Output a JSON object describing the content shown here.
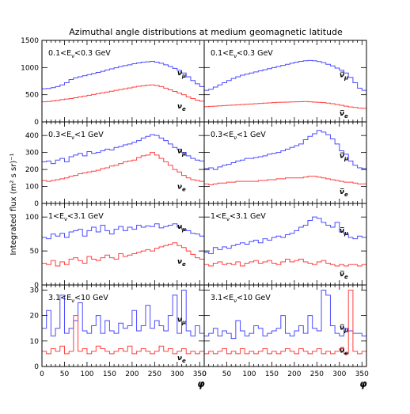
{
  "chart_data": {
    "type": "line",
    "title": "Azimuthal angle distributions at medium geomagnetic latitude",
    "ylabel": "Integrated flux (m² s sr)⁻¹",
    "xlabel": "φ",
    "xlim": [
      0,
      360
    ],
    "x_ticks": [
      0,
      50,
      100,
      150,
      200,
      250,
      300,
      350
    ],
    "bin_width": 10,
    "colors": {
      "nu_mu": "#4b4bff",
      "nu_e": "#ff4040"
    },
    "rows": [
      {
        "ylim": [
          0,
          1500
        ],
        "y_ticks": [
          0,
          500,
          1000,
          1500
        ],
        "panels": [
          {
            "label": "0.1<Eν<0.3 GeV",
            "series": [
              {
                "name": "νμ",
                "color_key": "nu_mu",
                "values": [
                  610,
                  615,
                  630,
                  650,
                  680,
                  720,
                  780,
                  810,
                  830,
                  850,
                  870,
                  890,
                  910,
                  930,
                  955,
                  975,
                  995,
                  1020,
                  1035,
                  1050,
                  1070,
                  1085,
                  1100,
                  1105,
                  1115,
                  1100,
                  1080,
                  1050,
                  1020,
                  985,
                  950,
                  900,
                  830,
                  760,
                  700,
                  650
                ]
              },
              {
                "name": "νe",
                "color_key": "nu_e",
                "values": [
                  370,
                  375,
                  385,
                  395,
                  410,
                  420,
                  430,
                  445,
                  460,
                  475,
                  490,
                  505,
                  520,
                  535,
                  550,
                  565,
                  580,
                  595,
                  610,
                  625,
                  640,
                  655,
                  665,
                  675,
                  680,
                  670,
                  650,
                  620,
                  590,
                  560,
                  530,
                  500,
                  460,
                  430,
                  400,
                  380
                ]
              }
            ]
          },
          {
            "label": "0.1<Eν<0.3 GeV",
            "series": [
              {
                "name": "ν̅μ",
                "color_key": "nu_mu",
                "values": [
                  580,
                  600,
                  640,
                  680,
                  720,
                  760,
                  800,
                  830,
                  860,
                  880,
                  900,
                  920,
                  940,
                  960,
                  980,
                  1000,
                  1020,
                  1040,
                  1060,
                  1080,
                  1100,
                  1115,
                  1125,
                  1130,
                  1125,
                  1110,
                  1090,
                  1060,
                  1030,
                  990,
                  950,
                  900,
                  820,
                  720,
                  620,
                  580
                ]
              },
              {
                "name": "ν̅e",
                "color_key": "nu_e",
                "values": [
                  280,
                  285,
                  290,
                  295,
                  300,
                  305,
                  310,
                  315,
                  320,
                  325,
                  330,
                  335,
                  340,
                  345,
                  350,
                  355,
                  360,
                  362,
                  365,
                  368,
                  370,
                  372,
                  375,
                  370,
                  365,
                  360,
                  355,
                  345,
                  335,
                  320,
                  305,
                  290,
                  275,
                  265,
                  255,
                  250
                ]
              }
            ]
          }
        ]
      },
      {
        "ylim": [
          0,
          480
        ],
        "y_ticks": [
          0,
          100,
          200,
          300,
          400
        ],
        "panels": [
          {
            "label": "0.3<Eν<1 GeV",
            "series": [
              {
                "name": "νμ",
                "color_key": "nu_mu",
                "values": [
                  245,
                  250,
                  235,
                  255,
                  265,
                  245,
                  275,
                  285,
                  295,
                  280,
                  305,
                  295,
                  300,
                  310,
                  320,
                  315,
                  330,
                  335,
                  345,
                  350,
                  360,
                  370,
                  385,
                  395,
                  405,
                  400,
                  385,
                  370,
                  350,
                  330,
                  320,
                  300,
                  280,
                  265,
                  255,
                  250
                ]
              },
              {
                "name": "νe",
                "color_key": "nu_e",
                "values": [
                  135,
                  130,
                  135,
                  140,
                  145,
                  150,
                  160,
                  165,
                  175,
                  180,
                  185,
                  190,
                  195,
                  205,
                  210,
                  220,
                  225,
                  235,
                  245,
                  250,
                  255,
                  270,
                  280,
                  285,
                  300,
                  285,
                  265,
                  245,
                  225,
                  200,
                  185,
                  165,
                  150,
                  140,
                  135,
                  130
                ]
              }
            ]
          },
          {
            "label": "0.3<Eν<1 GeV",
            "series": [
              {
                "name": "ν̅μ",
                "color_key": "nu_mu",
                "values": [
                  205,
                  210,
                  200,
                  215,
                  225,
                  230,
                  240,
                  250,
                  255,
                  265,
                  265,
                  270,
                  275,
                  280,
                  290,
                  295,
                  300,
                  310,
                  320,
                  330,
                  340,
                  350,
                  375,
                  395,
                  410,
                  430,
                  420,
                  405,
                  380,
                  350,
                  310,
                  290,
                  250,
                  225,
                  210,
                  205
                ]
              },
              {
                "name": "ν̅e",
                "color_key": "nu_e",
                "values": [
                  115,
                  110,
                  115,
                  120,
                  120,
                  125,
                  125,
                  130,
                  130,
                  130,
                  130,
                  130,
                  135,
                  135,
                  140,
                  140,
                  145,
                  145,
                  150,
                  150,
                  150,
                  150,
                  155,
                  160,
                  160,
                  155,
                  150,
                  145,
                  140,
                  135,
                  130,
                  125,
                  125,
                  120,
                  115,
                  115
                ]
              }
            ]
          }
        ]
      },
      {
        "ylim": [
          0,
          120
        ],
        "y_ticks": [
          0,
          50,
          100
        ],
        "panels": [
          {
            "label": "1<Eν<3.1 GeV",
            "series": [
              {
                "name": "νμ",
                "color_key": "nu_mu",
                "values": [
                  70,
                  68,
                  75,
                  72,
                  76,
                  70,
                  78,
                  80,
                  82,
                  72,
                  80,
                  85,
                  78,
                  88,
                  80,
                  75,
                  82,
                  86,
                  80,
                  85,
                  82,
                  88,
                  85,
                  87,
                  86,
                  90,
                  84,
                  86,
                  88,
                  90,
                  85,
                  82,
                  80,
                  76,
                  75,
                  72
                ]
              },
              {
                "name": "νe",
                "color_key": "nu_e",
                "values": [
                  32,
                  30,
                  36,
                  28,
                  34,
                  30,
                  38,
                  40,
                  36,
                  32,
                  42,
                  38,
                  36,
                  40,
                  44,
                  40,
                  38,
                  46,
                  42,
                  44,
                  46,
                  48,
                  50,
                  52,
                  50,
                  54,
                  56,
                  58,
                  60,
                  62,
                  58,
                  55,
                  50,
                  45,
                  40,
                  38
                ]
              }
            ]
          },
          {
            "label": "1<Eν<3.1 GeV",
            "series": [
              {
                "name": "ν̅μ",
                "color_key": "nu_mu",
                "values": [
                  48,
                  46,
                  55,
                  52,
                  56,
                  54,
                  58,
                  60,
                  62,
                  60,
                  64,
                  66,
                  62,
                  68,
                  66,
                  70,
                  72,
                  70,
                  74,
                  76,
                  80,
                  85,
                  88,
                  95,
                  100,
                  98,
                  92,
                  88,
                  85,
                  92,
                  78,
                  75,
                  70,
                  68,
                  72,
                  70
                ]
              },
              {
                "name": "ν̅e",
                "color_key": "nu_e",
                "values": [
                  30,
                  28,
                  32,
                  34,
                  30,
                  32,
                  30,
                  34,
                  28,
                  32,
                  34,
                  36,
                  32,
                  34,
                  36,
                  32,
                  30,
                  34,
                  38,
                  34,
                  36,
                  38,
                  34,
                  32,
                  30,
                  34,
                  36,
                  32,
                  30,
                  28,
                  30,
                  28,
                  30,
                  30,
                  28,
                  30
                ]
              }
            ]
          }
        ]
      },
      {
        "ylim": [
          0,
          32
        ],
        "y_ticks": [
          0,
          10,
          20,
          30
        ],
        "panels": [
          {
            "label": "3.1<Eν<10 GeV",
            "series": [
              {
                "name": "νμ",
                "color_key": "nu_mu",
                "values": [
                  15,
                  22,
                  12,
                  15,
                  28,
                  13,
                  15,
                  18,
                  25,
                  14,
                  13,
                  16,
                  20,
                  13,
                  18,
                  14,
                  13,
                  17,
                  15,
                  16,
                  22,
                  14,
                  16,
                  24,
                  15,
                  18,
                  16,
                  14,
                  20,
                  28,
                  13,
                  30,
                  14,
                  12,
                  16,
                  13
                ]
              },
              {
                "name": "νe",
                "color_key": "nu_e",
                "values": [
                  6,
                  5,
                  7,
                  6,
                  8,
                  5,
                  6,
                  20,
                  6,
                  7,
                  5,
                  6,
                  8,
                  7,
                  6,
                  5,
                  6,
                  7,
                  6,
                  8,
                  5,
                  6,
                  7,
                  6,
                  5,
                  6,
                  8,
                  6,
                  7,
                  5,
                  6,
                  7,
                  5,
                  6,
                  5,
                  6
                ]
              }
            ]
          },
          {
            "label": "3.1<Eν<10 GeV",
            "series": [
              {
                "name": "ν̅μ",
                "color_key": "nu_mu",
                "values": [
                  12,
                  13,
                  15,
                  12,
                  14,
                  13,
                  11,
                  18,
                  14,
                  12,
                  13,
                  16,
                  15,
                  12,
                  13,
                  14,
                  15,
                  20,
                  13,
                  12,
                  14,
                  16,
                  13,
                  20,
                  15,
                  14,
                  30,
                  28,
                  16,
                  13,
                  12,
                  15,
                  14,
                  13,
                  13,
                  12
                ]
              },
              {
                "name": "ν̅e",
                "color_key": "nu_e",
                "values": [
                  5,
                  6,
                  5,
                  6,
                  7,
                  5,
                  6,
                  5,
                  7,
                  5,
                  6,
                  5,
                  6,
                  7,
                  5,
                  6,
                  5,
                  6,
                  7,
                  6,
                  5,
                  7,
                  6,
                  5,
                  6,
                  7,
                  5,
                  6,
                  5,
                  6,
                  7,
                  5,
                  30,
                  6,
                  5,
                  6
                ]
              }
            ]
          }
        ]
      }
    ]
  }
}
